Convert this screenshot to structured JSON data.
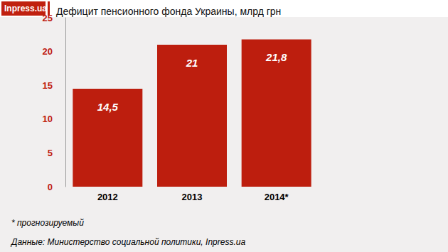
{
  "chart_data": {
    "type": "bar",
    "title": "Дефицит пенсионного фонда Украины, млрд грн",
    "logo": "Inpress.ua",
    "notes": [
      "* прогнозируемый",
      "Данные: Министерство социальной политики, Inpress.ua"
    ],
    "categories": [
      "2012",
      "2013",
      "2014*"
    ],
    "values": [
      14.5,
      21,
      21.8
    ],
    "value_labels": [
      "14,5",
      "21",
      "21,8"
    ],
    "color": "#bd1e0e",
    "ylim": [
      0,
      25
    ],
    "yticks": [
      0,
      5,
      10,
      15,
      20,
      25
    ],
    "grid": false,
    "data_labels": true
  }
}
